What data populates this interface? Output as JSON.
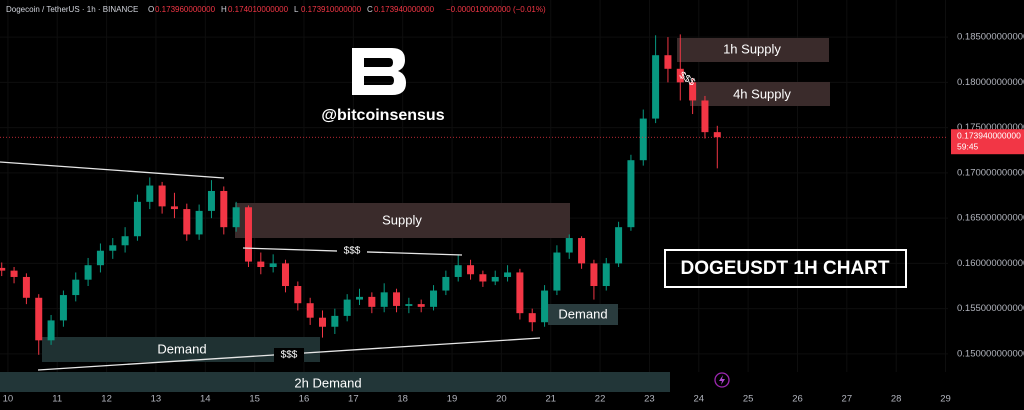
{
  "chart_data": {
    "type": "candlestick",
    "title": "DOGEUSDT 1H CHART",
    "watermark": "@bitcoinsensus",
    "header": {
      "symbol": "Dogecoin / TetherUS · 1h · BINANCE",
      "ohlc_labels": [
        "O",
        "H",
        "L",
        "C"
      ],
      "ohlc_values": [
        "0.173960000000",
        "0.174010000000",
        "0.173910000000",
        "0.173940000000"
      ],
      "change": "−0.000010000000 (−0.01%)"
    },
    "annotations": [
      "Supply",
      "1h Supply",
      "4h Supply",
      "Demand",
      "2h Demand",
      "Demand",
      "$$$",
      "$$$",
      "$$$"
    ],
    "last_price": {
      "value": 0.17394,
      "label": "0.173940000000"
    },
    "countdown": "59:45",
    "up_color": "#089981",
    "down_color": "#f23645",
    "xlim": [
      9.84,
      29.05
    ],
    "ylim": [
      0.148,
      0.1891
    ],
    "xticks": [
      10,
      11,
      12,
      13,
      14,
      15,
      16,
      17,
      18,
      19,
      20,
      21,
      22,
      23,
      24,
      25,
      26,
      27,
      28,
      29
    ],
    "yticks": [
      {
        "value": 0.15,
        "label": "0.150000000000"
      },
      {
        "value": 0.155,
        "label": "0.155000000000"
      },
      {
        "value": 0.16,
        "label": "0.160000000000"
      },
      {
        "value": 0.165,
        "label": "0.165000000000"
      },
      {
        "value": 0.17,
        "label": "0.170000000000"
      },
      {
        "value": 0.175,
        "label": "0.175000000000"
      },
      {
        "value": 0.18,
        "label": "0.180000000000"
      },
      {
        "value": 0.185,
        "label": "0.185000000000"
      }
    ],
    "x": [
      9.875,
      10.125,
      10.375,
      10.625,
      10.875,
      11.125,
      11.375,
      11.625,
      11.875,
      12.125,
      12.375,
      12.625,
      12.875,
      13.125,
      13.375,
      13.625,
      13.875,
      14.125,
      14.375,
      14.625,
      14.875,
      15.125,
      15.375,
      15.625,
      15.875,
      16.125,
      16.375,
      16.625,
      16.875,
      17.125,
      17.375,
      17.625,
      17.875,
      18.125,
      18.375,
      18.625,
      18.875,
      19.125,
      19.375,
      19.625,
      19.875,
      20.125,
      20.375,
      20.625,
      20.875,
      21.125,
      21.375,
      21.625,
      21.875,
      22.125,
      22.375,
      22.625,
      22.875,
      23.125,
      23.375,
      23.625,
      23.875,
      24.125,
      24.375
    ],
    "open": [
      0.1595,
      0.1592,
      0.1585,
      0.1562,
      0.1515,
      0.1537,
      0.1565,
      0.1582,
      0.1598,
      0.1614,
      0.162,
      0.163,
      0.1668,
      0.1686,
      0.1663,
      0.166,
      0.1632,
      0.1658,
      0.168,
      0.164,
      0.1662,
      0.1602,
      0.1596,
      0.16,
      0.1575,
      0.1556,
      0.154,
      0.153,
      0.1542,
      0.156,
      0.1563,
      0.1552,
      0.1568,
      0.1553,
      0.1555,
      0.1552,
      0.157,
      0.1585,
      0.1598,
      0.1588,
      0.158,
      0.1585,
      0.159,
      0.1545,
      0.1535,
      0.157,
      0.1612,
      0.1628,
      0.16,
      0.1575,
      0.16,
      0.164,
      0.1714,
      0.176,
      0.183,
      0.1815,
      0.18,
      0.178,
      0.1745
    ],
    "high": [
      0.1601,
      0.1596,
      0.1589,
      0.1566,
      0.1543,
      0.157,
      0.159,
      0.1606,
      0.1622,
      0.1628,
      0.164,
      0.1676,
      0.1695,
      0.169,
      0.1678,
      0.1666,
      0.1665,
      0.1692,
      0.1685,
      0.1668,
      0.1664,
      0.1612,
      0.161,
      0.1604,
      0.158,
      0.1562,
      0.1548,
      0.155,
      0.1566,
      0.1572,
      0.1568,
      0.1578,
      0.1572,
      0.1562,
      0.156,
      0.1576,
      0.1592,
      0.161,
      0.1604,
      0.1592,
      0.1592,
      0.1598,
      0.1594,
      0.155,
      0.1576,
      0.162,
      0.1632,
      0.163,
      0.1604,
      0.1606,
      0.1646,
      0.172,
      0.177,
      0.1852,
      0.185,
      0.1853,
      0.1805,
      0.1785,
      0.1752
    ],
    "low": [
      0.1586,
      0.1578,
      0.1555,
      0.1499,
      0.151,
      0.153,
      0.1558,
      0.1575,
      0.159,
      0.1605,
      0.1612,
      0.1625,
      0.166,
      0.1655,
      0.165,
      0.1625,
      0.1626,
      0.165,
      0.1632,
      0.1635,
      0.1596,
      0.1588,
      0.159,
      0.1568,
      0.1548,
      0.1532,
      0.1518,
      0.1522,
      0.1536,
      0.1554,
      0.1545,
      0.1546,
      0.1546,
      0.1545,
      0.1546,
      0.1548,
      0.1565,
      0.158,
      0.1582,
      0.1574,
      0.1576,
      0.158,
      0.1538,
      0.1525,
      0.153,
      0.1565,
      0.1605,
      0.1594,
      0.156,
      0.157,
      0.1596,
      0.1636,
      0.1708,
      0.1755,
      0.18,
      0.178,
      0.1765,
      0.1738,
      0.1705
    ],
    "close": [
      0.1592,
      0.1585,
      0.1562,
      0.1515,
      0.1537,
      0.1565,
      0.1582,
      0.1598,
      0.1614,
      0.162,
      0.163,
      0.1668,
      0.1686,
      0.1663,
      0.166,
      0.1632,
      0.1658,
      0.168,
      0.164,
      0.1662,
      0.1602,
      0.1596,
      0.16,
      0.1575,
      0.1556,
      0.154,
      0.153,
      0.1542,
      0.156,
      0.1563,
      0.1552,
      0.1568,
      0.1553,
      0.1555,
      0.1552,
      0.157,
      0.1585,
      0.1598,
      0.1588,
      0.158,
      0.1585,
      0.159,
      0.1545,
      0.1535,
      0.157,
      0.1612,
      0.1628,
      0.16,
      0.1575,
      0.16,
      0.164,
      0.1714,
      0.176,
      0.183,
      0.1815,
      0.18,
      0.178,
      0.1745,
      0.17394
    ]
  }
}
